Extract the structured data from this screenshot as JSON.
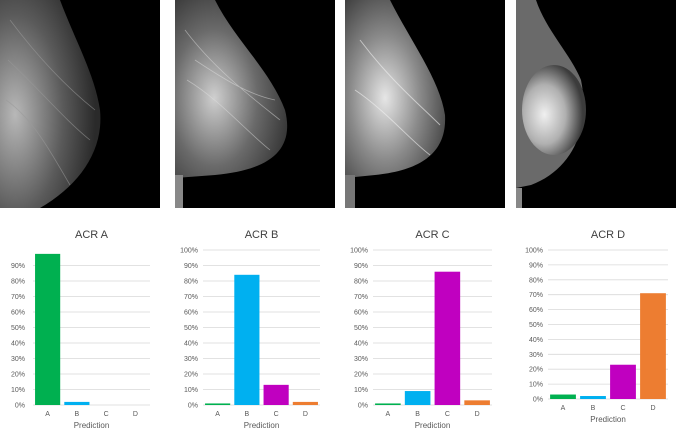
{
  "chart_data": [
    {
      "type": "bar",
      "title": "ACR A",
      "xlabel": "Prediction",
      "categories": [
        "A",
        "B",
        "C",
        "D"
      ],
      "values": [
        97.5,
        2,
        0,
        0
      ],
      "ylim": [
        0,
        100
      ],
      "yticks": [
        "0%",
        "10%",
        "20%",
        "30%",
        "40%",
        "50%",
        "60%",
        "70%",
        "80%",
        "90%"
      ],
      "grid": true
    },
    {
      "type": "bar",
      "title": "ACR B",
      "xlabel": "Prediction",
      "categories": [
        "A",
        "B",
        "C",
        "D"
      ],
      "values": [
        1,
        84,
        13,
        2
      ],
      "ylim": [
        0,
        100
      ],
      "yticks": [
        "0%",
        "10%",
        "20%",
        "30%",
        "40%",
        "50%",
        "60%",
        "70%",
        "80%",
        "90%",
        "100%"
      ],
      "grid": true
    },
    {
      "type": "bar",
      "title": "ACR C",
      "xlabel": "Prediction",
      "categories": [
        "A",
        "B",
        "C",
        "D"
      ],
      "values": [
        1,
        9,
        86,
        3
      ],
      "ylim": [
        0,
        100
      ],
      "yticks": [
        "0%",
        "10%",
        "20%",
        "30%",
        "40%",
        "50%",
        "60%",
        "70%",
        "80%",
        "90%",
        "100%"
      ],
      "grid": true
    },
    {
      "type": "bar",
      "title": "ACR D",
      "xlabel": "Prediction",
      "categories": [
        "A",
        "B",
        "C",
        "D"
      ],
      "values": [
        3,
        2,
        23,
        71
      ],
      "ylim": [
        0,
        100
      ],
      "yticks": [
        "0%",
        "10%",
        "20%",
        "30%",
        "40%",
        "50%",
        "60%",
        "70%",
        "80%",
        "90%",
        "100%"
      ],
      "grid": true
    }
  ],
  "colors": {
    "A": "#00b050",
    "B": "#00b0f0",
    "C": "#c000c0",
    "D": "#ed7d31",
    "grid": "#d9d9d9",
    "axis_text": "#595959",
    "title_text": "#404040"
  }
}
